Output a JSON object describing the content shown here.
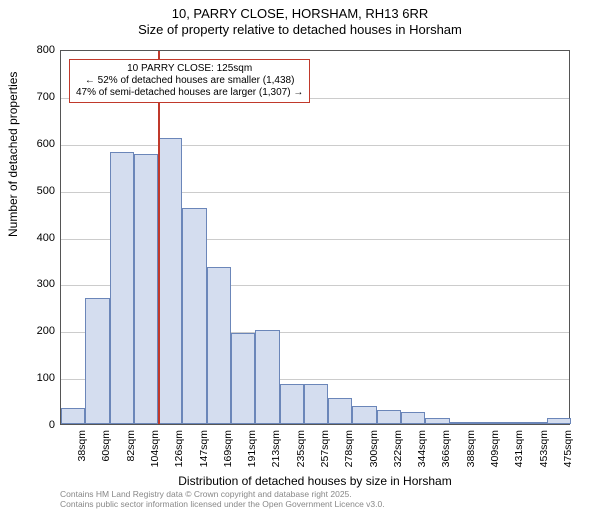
{
  "title": {
    "main": "10, PARRY CLOSE, HORSHAM, RH13 6RR",
    "sub": "Size of property relative to detached houses in Horsham"
  },
  "annotation": {
    "line1": "10 PARRY CLOSE: 125sqm",
    "line2": "← 52% of detached houses are smaller (1,438)",
    "line3": "47% of semi-detached houses are larger (1,307) →"
  },
  "chart": {
    "type": "bar",
    "ylabel": "Number of detached properties",
    "xlabel": "Distribution of detached houses by size in Horsham",
    "ylim": [
      0,
      800
    ],
    "ytick_step": 100,
    "yticks": [
      0,
      100,
      200,
      300,
      400,
      500,
      600,
      700,
      800
    ],
    "xticks": [
      "38sqm",
      "60sqm",
      "82sqm",
      "104sqm",
      "126sqm",
      "147sqm",
      "169sqm",
      "191sqm",
      "213sqm",
      "235sqm",
      "257sqm",
      "278sqm",
      "300sqm",
      "322sqm",
      "344sqm",
      "366sqm",
      "388sqm",
      "409sqm",
      "431sqm",
      "453sqm",
      "475sqm"
    ],
    "values": [
      35,
      268,
      580,
      575,
      610,
      460,
      335,
      195,
      200,
      85,
      85,
      55,
      38,
      30,
      25,
      12,
      3,
      1,
      1,
      1,
      12
    ],
    "bar_fill": "#d4ddef",
    "bar_border": "#6b86b9",
    "grid_color": "#cccccc",
    "axis_color": "#555555",
    "background": "#ffffff",
    "marker_index": 4,
    "marker_color": "#c0392b",
    "bar_width_ratio": 1.0,
    "title_fontsize": 13,
    "label_fontsize": 12,
    "tick_fontsize": 11
  },
  "footer": {
    "line1": "Contains HM Land Registry data © Crown copyright and database right 2025.",
    "line2": "Contains public sector information licensed under the Open Government Licence v3.0."
  }
}
